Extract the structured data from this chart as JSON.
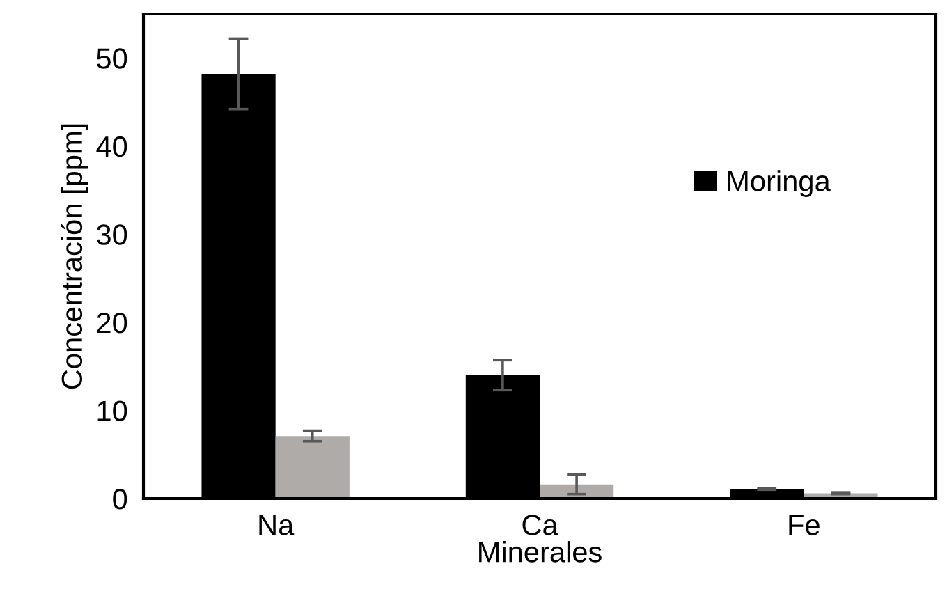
{
  "chart_data": {
    "type": "bar",
    "xlabel": "Minerales",
    "ylabel": "Concentración [ppm]",
    "categories": [
      "Na",
      "Ca",
      "Fe"
    ],
    "series": [
      {
        "name": "Moringa",
        "color": "#000000",
        "values": [
          48.2,
          14.0,
          1.1
        ],
        "errors": [
          4.0,
          1.7,
          0.1
        ]
      },
      {
        "color": "#aeaba8",
        "values": [
          7.1,
          1.6,
          0.6
        ],
        "errors": [
          0.6,
          1.1,
          0.1
        ]
      }
    ],
    "ylim": [
      0,
      55
    ],
    "yticks": [
      0,
      10,
      20,
      30,
      40,
      50
    ],
    "grid": false,
    "legend": "center right"
  }
}
